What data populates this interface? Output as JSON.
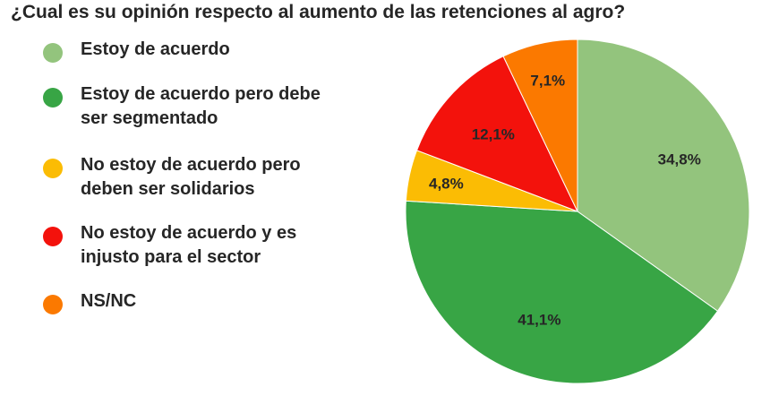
{
  "chart_data": {
    "type": "pie",
    "title": "¿Cual es su opinión respecto al aumento de las retenciones al agro?",
    "legend_placement": "left",
    "slices": [
      {
        "name": "Estoy de acuerdo",
        "value": 34.8,
        "label": "34,8%",
        "color": "#93c47d"
      },
      {
        "name": "Estoy de acuerdo pero debe\nser segmentado",
        "value": 41.1,
        "label": "41,1%",
        "color": "#38a545"
      },
      {
        "name": "No estoy de acuerdo pero\ndeben ser solidarios",
        "value": 4.8,
        "label": "4,8%",
        "color": "#fbbc04"
      },
      {
        "name": "No estoy de acuerdo y es\ninjusto para el sector",
        "value": 12.1,
        "label": "12,1%",
        "color": "#f3120c"
      },
      {
        "name": "NS/NC",
        "value": 7.1,
        "label": "7,1%",
        "color": "#fb7900"
      }
    ]
  }
}
